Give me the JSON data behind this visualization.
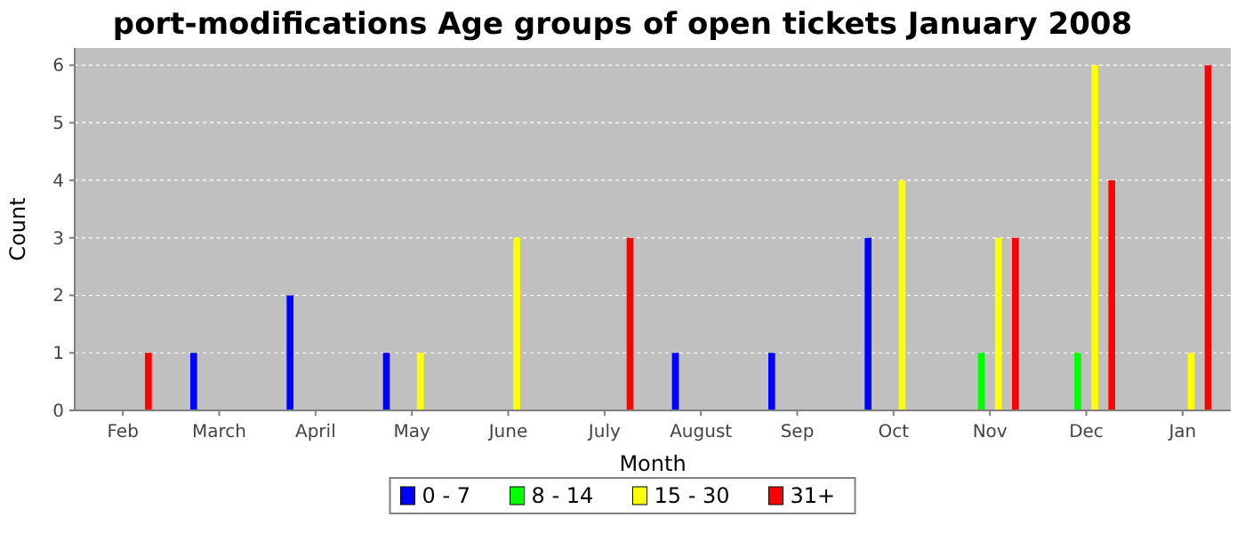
{
  "chart_data": {
    "type": "bar",
    "title": "port-modifications Age groups of open tickets January 2008",
    "xlabel": "Month",
    "ylabel": "Count",
    "categories": [
      "Feb",
      "March",
      "April",
      "May",
      "June",
      "July",
      "August",
      "Sep",
      "Oct",
      "Nov",
      "Dec",
      "Jan"
    ],
    "series": [
      {
        "name": "0 - 7",
        "color": "#0000ff",
        "values": [
          0,
          1,
          2,
          1,
          0,
          0,
          1,
          1,
          3,
          0,
          0,
          0
        ]
      },
      {
        "name": "8 - 14",
        "color": "#00ff00",
        "values": [
          0,
          0,
          0,
          0,
          0,
          0,
          0,
          0,
          0,
          1,
          1,
          0
        ]
      },
      {
        "name": "15 - 30",
        "color": "#ffff00",
        "values": [
          0,
          0,
          0,
          1,
          3,
          0,
          0,
          0,
          4,
          3,
          6,
          1
        ]
      },
      {
        "name": "31+",
        "color": "#ff0000",
        "values": [
          1,
          0,
          0,
          0,
          0,
          3,
          0,
          0,
          0,
          3,
          4,
          6
        ]
      }
    ],
    "ylim": [
      0,
      6.3
    ],
    "yticks": [
      0,
      1,
      2,
      3,
      4,
      5,
      6
    ],
    "grid": "y",
    "legend": "bottom"
  }
}
